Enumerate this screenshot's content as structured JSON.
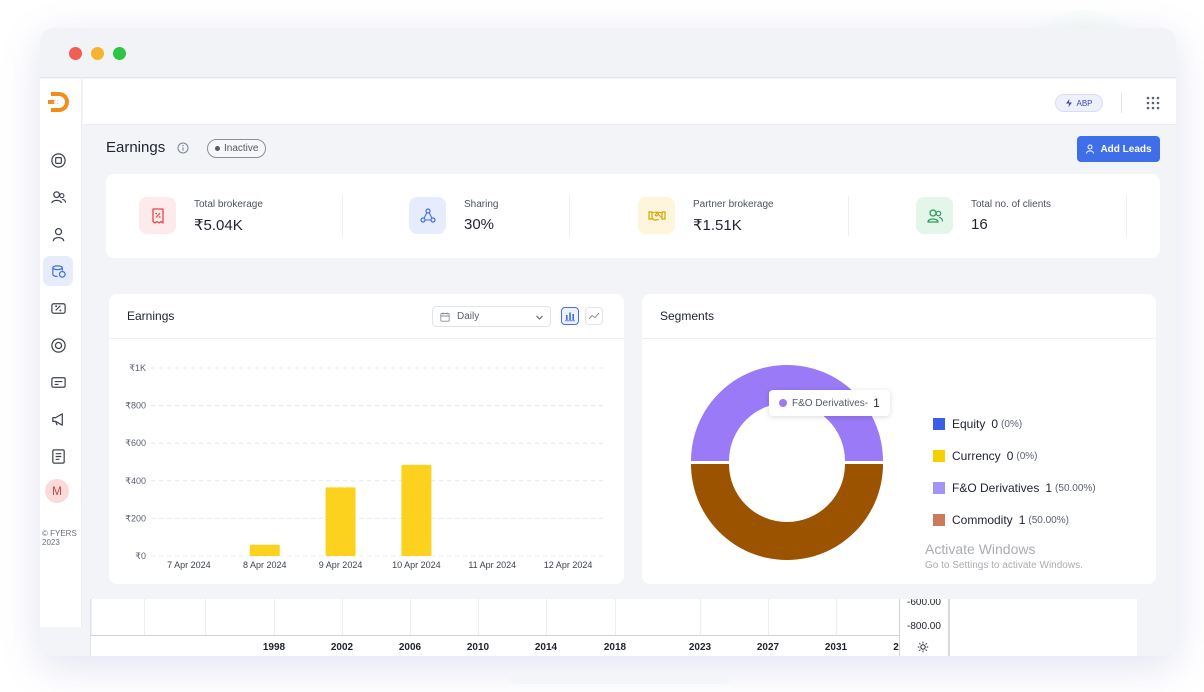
{
  "window": {
    "controls": [
      "close",
      "minimize",
      "maximize"
    ]
  },
  "sidebar": {
    "items": [
      {
        "icon": "dashboard-icon",
        "active": false
      },
      {
        "icon": "users-icon",
        "active": false
      },
      {
        "icon": "user-icon",
        "active": false
      },
      {
        "icon": "earnings-icon",
        "active": true
      },
      {
        "icon": "brokerage-icon",
        "active": false
      },
      {
        "icon": "support-icon",
        "active": false
      },
      {
        "icon": "card-icon",
        "active": false
      },
      {
        "icon": "megaphone-icon",
        "active": false
      },
      {
        "icon": "report-icon",
        "active": false
      }
    ],
    "avatar_initial": "M",
    "copyright": "© FYERS 2023"
  },
  "topbar": {
    "badge_label": "ABP"
  },
  "page": {
    "title": "Earnings",
    "status": "Inactive",
    "add_leads_label": "Add Leads"
  },
  "stats": [
    {
      "label": "Total  brokerage",
      "value": "₹5.04K",
      "icon": "percent-receipt-icon",
      "color": "#e5484d"
    },
    {
      "label": "Sharing",
      "value": "30%",
      "icon": "share-nodes-icon",
      "color": "#3f6ee8"
    },
    {
      "label": "Partner brokerage",
      "value": "₹1.51K",
      "icon": "handshake-icon",
      "color": "#e2b100"
    },
    {
      "label": "Total no. of clients",
      "value": "16",
      "icon": "clients-icon",
      "color": "#2f9e5a"
    }
  ],
  "earnings": {
    "title": "Earnings",
    "period": "Daily"
  },
  "segments": {
    "title": "Segments",
    "tooltip": {
      "label": "F&O Derivatives-",
      "value": "1"
    },
    "legend": [
      {
        "name": "Equity",
        "count": "0",
        "pct": "(0%)",
        "color": "#3b5ee6"
      },
      {
        "name": "Currency",
        "count": "0",
        "pct": "(0%)",
        "color": "#f7d000"
      },
      {
        "name": "F&O Derivatives",
        "count": "1",
        "pct": "(50.00%)",
        "color": "#a394f7"
      },
      {
        "name": "Commodity",
        "count": "1",
        "pct": "(50.00%)",
        "color": "#cc7a5c"
      }
    ]
  },
  "chart_data": [
    {
      "type": "bar",
      "categories": [
        "7 Apr 2024",
        "8 Apr 2024",
        "9 Apr 2024",
        "10 Apr 2024",
        "11 Apr 2024",
        "12 Apr 2024"
      ],
      "values": [
        0,
        60,
        365,
        485,
        0,
        0
      ],
      "yticks": [
        "₹0",
        "₹200",
        "₹400",
        "₹600",
        "₹800",
        "₹1K"
      ],
      "ylim": [
        0,
        1000
      ],
      "grid": true,
      "color": "#fdd21f"
    },
    {
      "type": "pie",
      "categories": [
        "Equity",
        "Currency",
        "F&O Derivatives",
        "Commodity"
      ],
      "values": [
        0,
        0,
        1,
        1
      ],
      "colors": [
        "#3b5ee6",
        "#f7d000",
        "#9a7af7",
        "#9c5300"
      ]
    }
  ],
  "bottom_chart": {
    "years": [
      "1998",
      "2002",
      "2006",
      "2010",
      "2014",
      "2018",
      "2023",
      "2027",
      "2031",
      "2"
    ],
    "prices": [
      "-600.00",
      "-800.00"
    ]
  },
  "watermark": {
    "line1": "Activate Windows",
    "line2": "Go to Settings to activate Windows."
  }
}
